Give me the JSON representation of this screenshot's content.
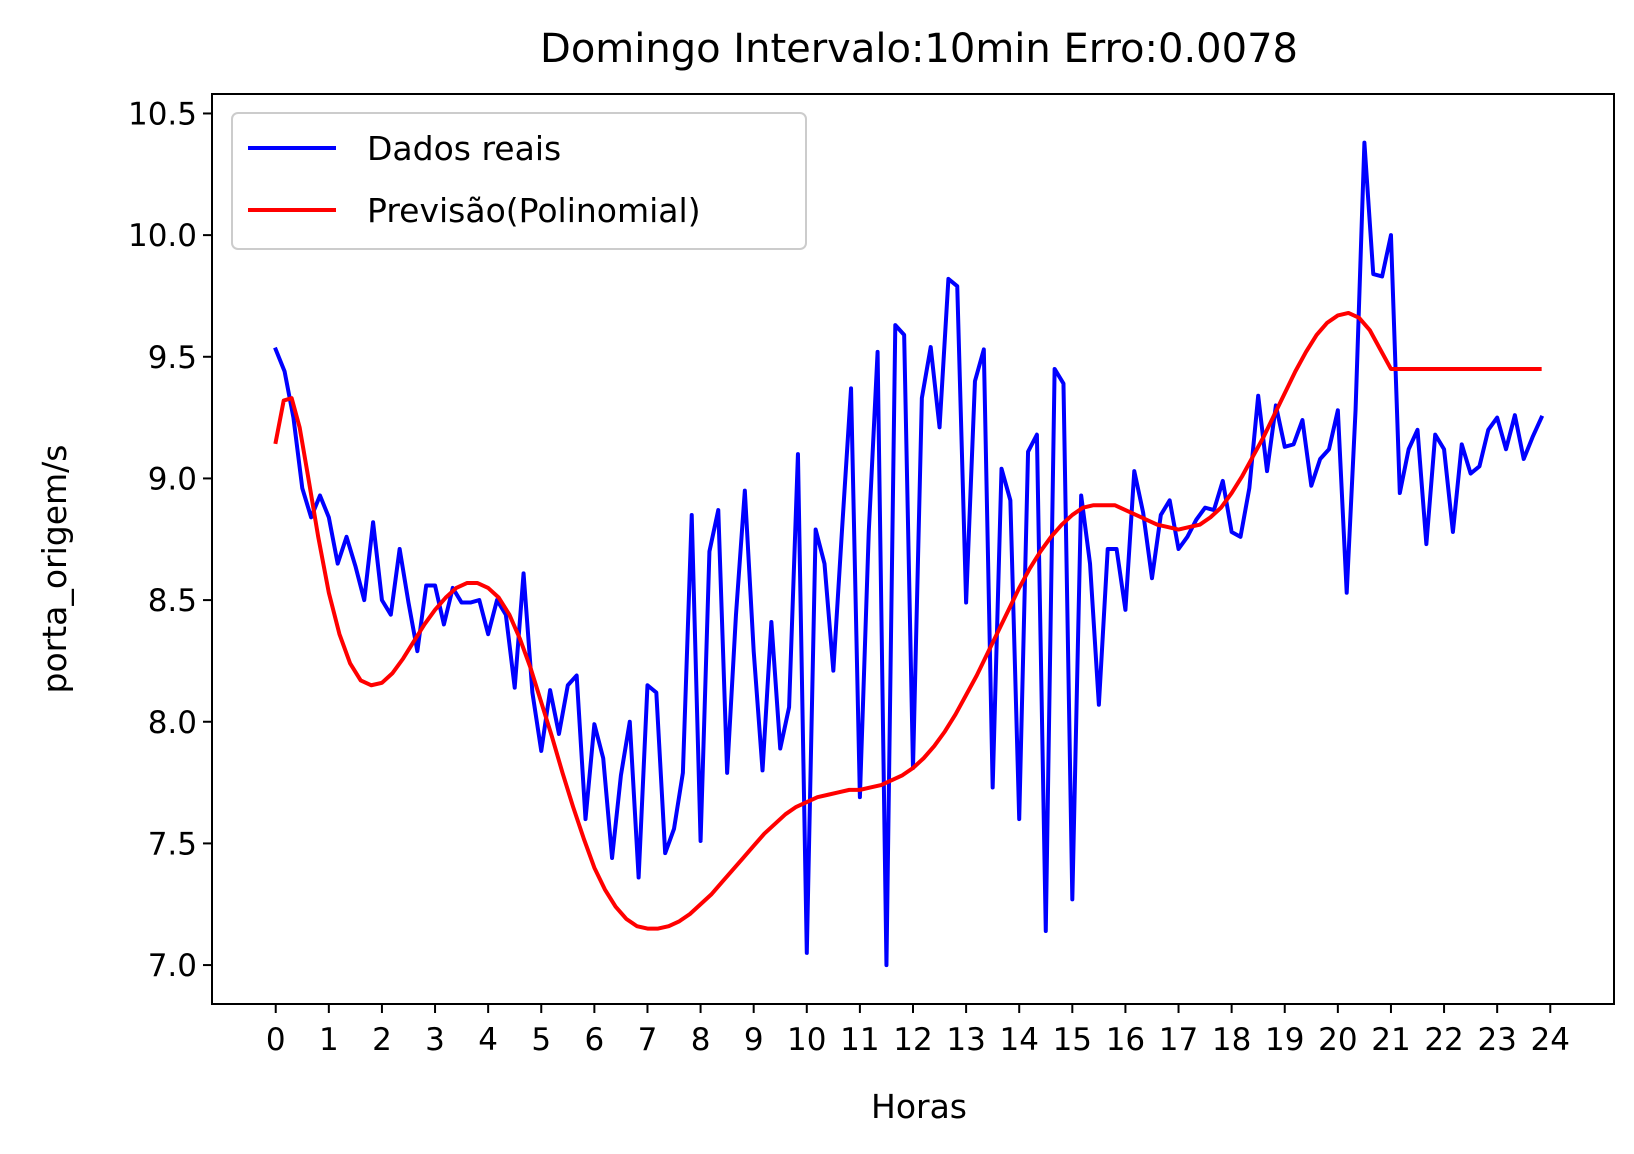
{
  "chart_data": {
    "type": "line",
    "title": "Domingo Intervalo:10min Erro:0.0078",
    "xlabel": "Horas",
    "ylabel": "porta_origem/s",
    "xlim": [
      -1.2,
      25.2
    ],
    "ylim": [
      6.84,
      10.58
    ],
    "x_ticks": [
      0,
      1,
      2,
      3,
      4,
      5,
      6,
      7,
      8,
      9,
      10,
      11,
      12,
      13,
      14,
      15,
      16,
      17,
      18,
      19,
      20,
      21,
      22,
      23,
      24
    ],
    "x_tick_labels": [
      "0",
      "1",
      "2",
      "3",
      "4",
      "5",
      "6",
      "7",
      "8",
      "9",
      "10",
      "11",
      "12",
      "13",
      "14",
      "15",
      "16",
      "17",
      "18",
      "19",
      "20",
      "21",
      "22",
      "23",
      "24"
    ],
    "y_ticks": [
      7.0,
      7.5,
      8.0,
      8.5,
      9.0,
      9.5,
      10.0,
      10.5
    ],
    "y_tick_labels": [
      "7.0",
      "7.5",
      "8.0",
      "8.5",
      "9.0",
      "9.5",
      "10.0",
      "10.5"
    ],
    "grid": false,
    "legend_position": "upper-left",
    "series": [
      {
        "name": "Dados reais",
        "color": "#0000ff",
        "x": [
          0.0,
          0.1667,
          0.3333,
          0.5,
          0.6667,
          0.8333,
          1.0,
          1.1667,
          1.3333,
          1.5,
          1.6667,
          1.8333,
          2.0,
          2.1667,
          2.3333,
          2.5,
          2.6667,
          2.8333,
          3.0,
          3.1667,
          3.3333,
          3.5,
          3.6667,
          3.8333,
          4.0,
          4.1667,
          4.3333,
          4.5,
          4.6667,
          4.8333,
          5.0,
          5.1667,
          5.3333,
          5.5,
          5.6667,
          5.8333,
          6.0,
          6.1667,
          6.3333,
          6.5,
          6.6667,
          6.8333,
          7.0,
          7.1667,
          7.3333,
          7.5,
          7.6667,
          7.8333,
          8.0,
          8.1667,
          8.3333,
          8.5,
          8.6667,
          8.8333,
          9.0,
          9.1667,
          9.3333,
          9.5,
          9.6667,
          9.8333,
          10.0,
          10.1667,
          10.3333,
          10.5,
          10.6667,
          10.8333,
          11.0,
          11.1667,
          11.3333,
          11.5,
          11.6667,
          11.8333,
          12.0,
          12.1667,
          12.3333,
          12.5,
          12.6667,
          12.8333,
          13.0,
          13.1667,
          13.3333,
          13.5,
          13.6667,
          13.8333,
          14.0,
          14.1667,
          14.3333,
          14.5,
          14.6667,
          14.8333,
          15.0,
          15.1667,
          15.3333,
          15.5,
          15.6667,
          15.8333,
          16.0,
          16.1667,
          16.3333,
          16.5,
          16.6667,
          16.8333,
          17.0,
          17.1667,
          17.3333,
          17.5,
          17.6667,
          17.8333,
          18.0,
          18.1667,
          18.3333,
          18.5,
          18.6667,
          18.8333,
          19.0,
          19.1667,
          19.3333,
          19.5,
          19.6667,
          19.8333,
          20.0,
          20.1667,
          20.3333,
          20.5,
          20.6667,
          20.8333,
          21.0,
          21.1667,
          21.3333,
          21.5,
          21.6667,
          21.8333,
          22.0,
          22.1667,
          22.3333,
          22.5,
          22.6667,
          22.8333,
          23.0,
          23.1667,
          23.3333,
          23.5,
          23.6667,
          23.8333
        ],
        "y": [
          9.53,
          9.44,
          9.25,
          8.96,
          8.84,
          8.93,
          8.84,
          8.65,
          8.76,
          8.64,
          8.5,
          8.82,
          8.5,
          8.44,
          8.71,
          8.49,
          8.29,
          8.56,
          8.56,
          8.4,
          8.55,
          8.49,
          8.49,
          8.5,
          8.36,
          8.5,
          8.44,
          8.14,
          8.61,
          8.12,
          7.88,
          8.13,
          7.95,
          8.15,
          8.19,
          7.6,
          7.99,
          7.85,
          7.44,
          7.78,
          8.0,
          7.36,
          8.15,
          8.12,
          7.46,
          7.56,
          7.79,
          8.85,
          7.51,
          8.7,
          8.87,
          7.79,
          8.44,
          8.95,
          8.29,
          7.8,
          8.41,
          7.89,
          8.06,
          9.1,
          7.05,
          8.79,
          8.65,
          8.21,
          8.8,
          9.37,
          7.69,
          8.78,
          9.52,
          7.0,
          9.63,
          9.59,
          7.81,
          9.33,
          9.54,
          9.21,
          9.82,
          9.79,
          8.49,
          9.4,
          9.53,
          7.73,
          9.04,
          8.91,
          7.6,
          9.11,
          9.18,
          7.14,
          9.45,
          9.39,
          7.27,
          8.93,
          8.65,
          8.07,
          8.71,
          8.71,
          8.46,
          9.03,
          8.86,
          8.59,
          8.85,
          8.91,
          8.71,
          8.76,
          8.83,
          8.88,
          8.87,
          8.99,
          8.78,
          8.76,
          8.96,
          9.34,
          9.03,
          9.3,
          9.13,
          9.14,
          9.24,
          8.97,
          9.08,
          9.12,
          9.28,
          8.53,
          9.28,
          10.38,
          9.84,
          9.83,
          10.0,
          8.94,
          9.12,
          9.2,
          8.73,
          9.18,
          9.12,
          8.78,
          9.14,
          9.02,
          9.05,
          9.2,
          9.25,
          9.12,
          9.26,
          9.08,
          9.17,
          9.25
        ]
      },
      {
        "name": "Previsão(Polinomial)",
        "color": "#ff0000",
        "x": [
          0.0,
          0.15,
          0.3,
          0.45,
          0.6,
          0.8,
          1.0,
          1.2,
          1.4,
          1.6,
          1.8,
          2.0,
          2.2,
          2.4,
          2.6,
          2.8,
          3.0,
          3.2,
          3.4,
          3.6,
          3.8,
          4.0,
          4.2,
          4.4,
          4.6,
          4.8,
          5.0,
          5.2,
          5.4,
          5.6,
          5.8,
          6.0,
          6.2,
          6.4,
          6.6,
          6.8,
          7.0,
          7.2,
          7.4,
          7.6,
          7.8,
          8.0,
          8.2,
          8.4,
          8.6,
          8.8,
          9.0,
          9.2,
          9.4,
          9.6,
          9.8,
          10.0,
          10.2,
          10.4,
          10.6,
          10.8,
          11.0,
          11.2,
          11.4,
          11.6,
          11.8,
          12.0,
          12.2,
          12.4,
          12.6,
          12.8,
          13.0,
          13.2,
          13.4,
          13.6,
          13.8,
          14.0,
          14.2,
          14.4,
          14.6,
          14.8,
          15.0,
          15.2,
          15.4,
          15.6,
          15.8,
          16.0,
          16.2,
          16.4,
          16.6,
          16.8,
          17.0,
          17.2,
          17.4,
          17.6,
          17.8,
          18.0,
          18.2,
          18.4,
          18.6,
          18.8,
          19.0,
          19.2,
          19.4,
          19.6,
          19.8,
          20.0,
          20.2,
          20.4,
          20.6,
          20.8,
          21.0,
          21.2,
          21.4,
          21.6,
          21.8,
          22.0,
          22.2,
          22.4,
          22.6,
          22.8,
          23.0,
          23.2,
          23.4,
          23.6,
          23.8
        ],
        "y": [
          9.15,
          9.32,
          9.33,
          9.21,
          9.02,
          8.76,
          8.53,
          8.36,
          8.24,
          8.17,
          8.15,
          8.16,
          8.2,
          8.26,
          8.33,
          8.4,
          8.46,
          8.51,
          8.55,
          8.57,
          8.57,
          8.55,
          8.51,
          8.44,
          8.34,
          8.22,
          8.08,
          7.94,
          7.79,
          7.65,
          7.52,
          7.4,
          7.31,
          7.24,
          7.19,
          7.16,
          7.15,
          7.15,
          7.16,
          7.18,
          7.21,
          7.25,
          7.29,
          7.34,
          7.39,
          7.44,
          7.49,
          7.54,
          7.58,
          7.62,
          7.65,
          7.67,
          7.69,
          7.7,
          7.71,
          7.72,
          7.72,
          7.73,
          7.74,
          7.76,
          7.78,
          7.81,
          7.85,
          7.9,
          7.96,
          8.03,
          8.11,
          8.19,
          8.28,
          8.37,
          8.46,
          8.55,
          8.63,
          8.7,
          8.76,
          8.81,
          8.85,
          8.88,
          8.89,
          8.89,
          8.89,
          8.87,
          8.85,
          8.83,
          8.81,
          8.8,
          8.79,
          8.8,
          8.81,
          8.84,
          8.88,
          8.94,
          9.01,
          9.09,
          9.17,
          9.26,
          9.35,
          9.44,
          9.52,
          9.59,
          9.64,
          9.67,
          9.68,
          9.66,
          9.61,
          9.53,
          9.45,
          9.45,
          9.45,
          9.45,
          9.45,
          9.45,
          9.45,
          9.45,
          9.45,
          9.45,
          9.45,
          9.45,
          9.45,
          9.45,
          9.45
        ]
      }
    ]
  }
}
